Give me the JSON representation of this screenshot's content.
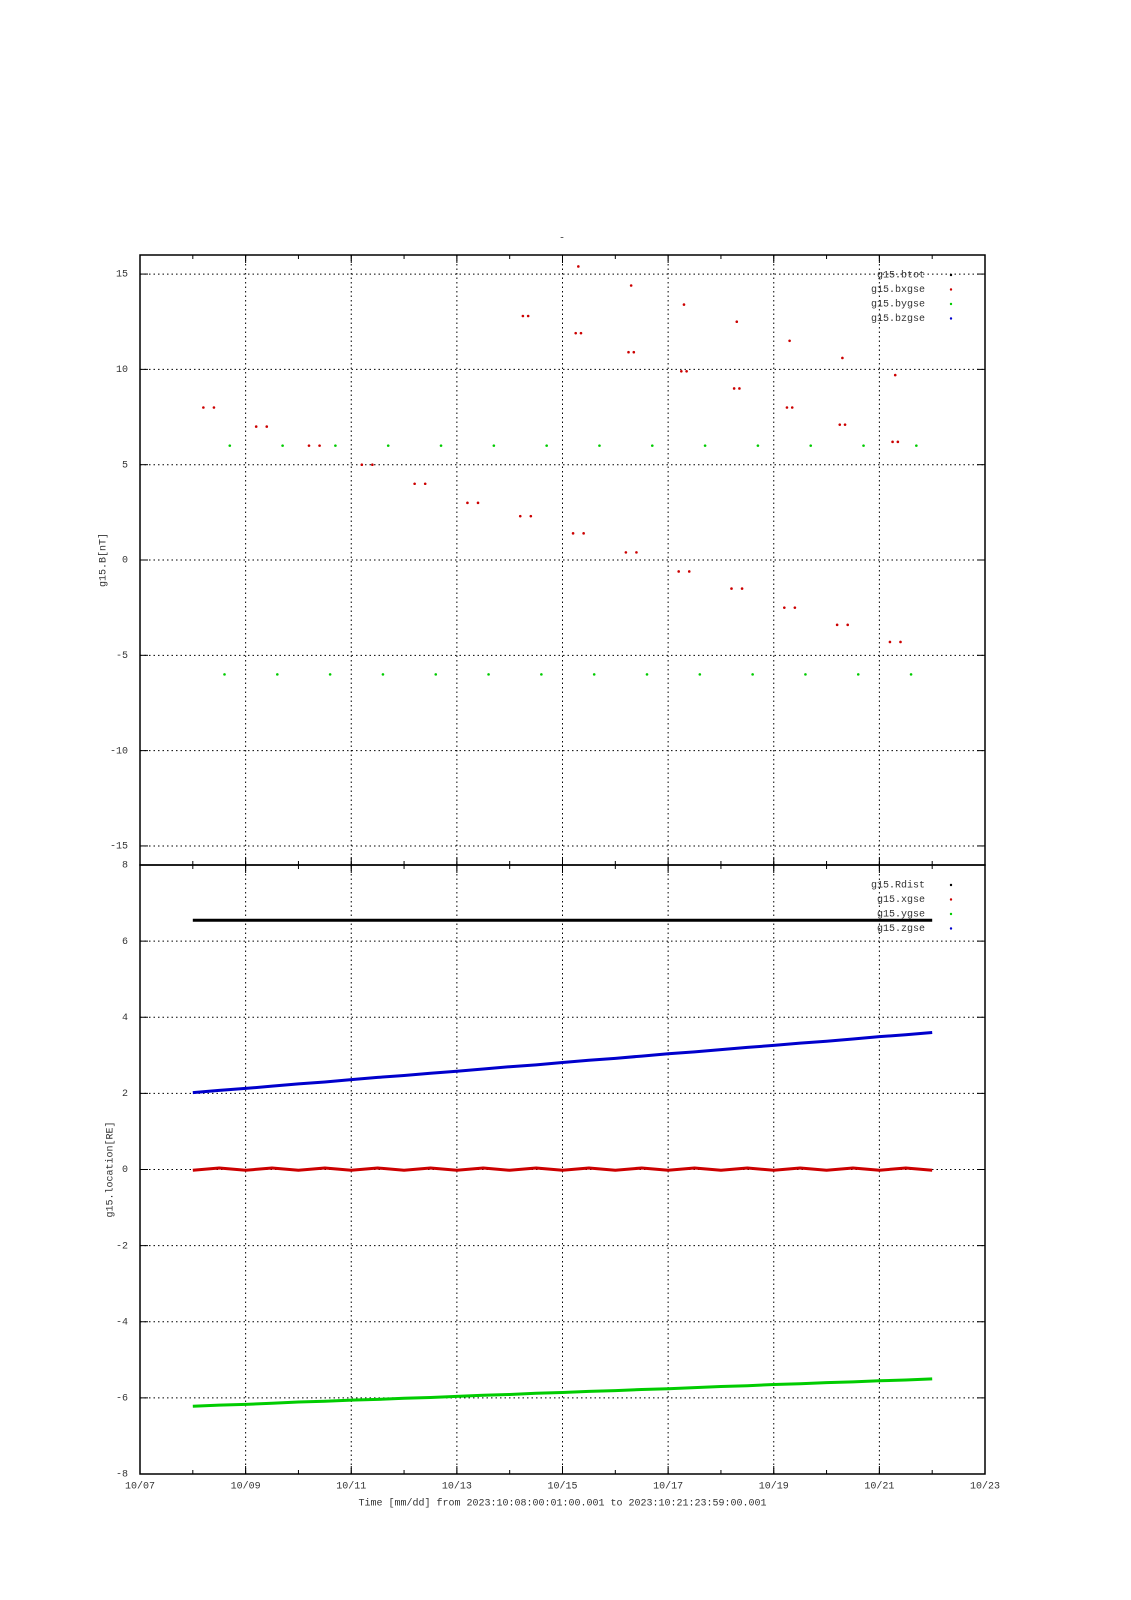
{
  "chart_data": [
    {
      "type": "scatter",
      "title": "-",
      "ylabel": "g15.B[nT]",
      "xlim": [
        7,
        23
      ],
      "ylim": [
        -16,
        16
      ],
      "xticks": [
        {
          "value": 7,
          "label": "10/07"
        },
        {
          "value": 9,
          "label": "10/09"
        },
        {
          "value": 11,
          "label": "10/11"
        },
        {
          "value": 13,
          "label": "10/13"
        },
        {
          "value": 15,
          "label": "10/15"
        },
        {
          "value": 17,
          "label": "10/17"
        },
        {
          "value": 19,
          "label": "10/19"
        },
        {
          "value": 21,
          "label": "10/21"
        },
        {
          "value": 23,
          "label": "10/23"
        }
      ],
      "yticks": [
        -15,
        -10,
        -5,
        0,
        5,
        10,
        15
      ],
      "grid": true,
      "legend": "upper right",
      "series": [
        {
          "name": "g15.btot",
          "color": "#000000",
          "x": [],
          "values": []
        },
        {
          "name": "g15.bxgse",
          "color": "#cc0000",
          "x": [
            8.2,
            8.4,
            9.2,
            9.4,
            10.2,
            10.4,
            11.2,
            11.4,
            12.2,
            12.4,
            13.2,
            13.4,
            14.2,
            14.25,
            14.35,
            14.4,
            15.2,
            15.25,
            15.3,
            15.35,
            15.4,
            16.2,
            16.25,
            16.3,
            16.35,
            16.4,
            17.2,
            17.25,
            17.3,
            17.35,
            17.4,
            18.2,
            18.25,
            18.3,
            18.35,
            18.4,
            19.2,
            19.25,
            19.3,
            19.35,
            19.4,
            20.2,
            20.25,
            20.3,
            20.35,
            20.4,
            21.2,
            21.25,
            21.3,
            21.35,
            21.4
          ],
          "values": [
            8,
            8,
            7,
            7,
            6,
            6,
            5,
            5,
            4,
            4,
            3,
            3,
            2.3,
            12.8,
            12.8,
            2.3,
            1.4,
            11.9,
            15.4,
            11.9,
            1.4,
            0.4,
            10.9,
            14.4,
            10.9,
            0.4,
            -0.6,
            9.9,
            13.4,
            9.9,
            -0.6,
            -1.5,
            9,
            12.5,
            9,
            -1.5,
            -2.5,
            8,
            11.5,
            8,
            -2.5,
            -3.4,
            7.1,
            10.6,
            7.1,
            -3.4,
            -4.3,
            6.2,
            9.7,
            6.2,
            -4.3
          ]
        },
        {
          "name": "g15.bygse",
          "color": "#00cc00",
          "x": [
            8.6,
            8.7,
            9.6,
            9.7,
            10.6,
            10.7,
            11.6,
            11.7,
            12.6,
            12.7,
            13.6,
            13.7,
            14.6,
            14.7,
            15.6,
            15.7,
            16.6,
            16.7,
            17.6,
            17.7,
            18.6,
            18.7,
            19.6,
            19.7,
            20.6,
            20.7,
            21.6,
            21.7
          ],
          "values": [
            -6,
            6,
            -6,
            6,
            -6,
            6,
            -6,
            6,
            -6,
            6,
            -6,
            6,
            -6,
            6,
            -6,
            6,
            -6,
            6,
            -6,
            6,
            -6,
            6,
            -6,
            6,
            -6,
            6,
            -6,
            6
          ]
        },
        {
          "name": "g15.bzgse",
          "color": "#0000cc",
          "x": [],
          "values": []
        }
      ]
    },
    {
      "type": "line",
      "ylabel": "g15.location[RE]",
      "xlabel": "Time [mm/dd]  from 2023:10:08:00:01:00.001  to  2023:10:21:23:59:00.001",
      "xlim": [
        7,
        23
      ],
      "ylim": [
        -8,
        8
      ],
      "xticks": [
        {
          "value": 7,
          "label": "10/07"
        },
        {
          "value": 9,
          "label": "10/09"
        },
        {
          "value": 11,
          "label": "10/11"
        },
        {
          "value": 13,
          "label": "10/13"
        },
        {
          "value": 15,
          "label": "10/15"
        },
        {
          "value": 17,
          "label": "10/17"
        },
        {
          "value": 19,
          "label": "10/19"
        },
        {
          "value": 21,
          "label": "10/21"
        },
        {
          "value": 23,
          "label": "10/23"
        }
      ],
      "yticks": [
        -8,
        -6,
        -4,
        -2,
        0,
        2,
        4,
        6,
        8
      ],
      "grid": true,
      "legend": "upper right",
      "x": [
        8,
        8.5,
        9,
        9.5,
        10,
        10.5,
        11,
        11.5,
        12,
        12.5,
        13,
        13.5,
        14,
        14.5,
        15,
        15.5,
        16,
        16.5,
        17,
        17.5,
        18,
        18.5,
        19,
        19.5,
        20,
        20.5,
        21,
        21.5,
        22
      ],
      "series": [
        {
          "name": "g15.Rdist",
          "color": "#000000",
          "values": [
            6.55,
            6.55,
            6.55,
            6.55,
            6.55,
            6.55,
            6.55,
            6.55,
            6.55,
            6.55,
            6.55,
            6.55,
            6.55,
            6.55,
            6.55,
            6.55,
            6.55,
            6.55,
            6.55,
            6.55,
            6.55,
            6.55,
            6.55,
            6.55,
            6.55,
            6.55,
            6.55,
            6.55,
            6.55
          ]
        },
        {
          "name": "g15.xgse",
          "color": "#cc0000",
          "values": [
            -0.02,
            0.04,
            -0.02,
            0.04,
            -0.02,
            0.04,
            -0.02,
            0.04,
            -0.02,
            0.04,
            -0.02,
            0.04,
            -0.02,
            0.04,
            -0.02,
            0.04,
            -0.02,
            0.04,
            -0.02,
            0.04,
            -0.02,
            0.04,
            -0.02,
            0.04,
            -0.02,
            0.04,
            -0.02,
            0.04,
            -0.02
          ]
        },
        {
          "name": "g15.ygse",
          "color": "#00cc00",
          "values": [
            -6.22,
            -6.19,
            -6.17,
            -6.14,
            -6.11,
            -6.09,
            -6.06,
            -6.04,
            -6.01,
            -5.99,
            -5.96,
            -5.93,
            -5.91,
            -5.88,
            -5.86,
            -5.83,
            -5.81,
            -5.78,
            -5.76,
            -5.73,
            -5.7,
            -5.68,
            -5.65,
            -5.63,
            -5.6,
            -5.58,
            -5.55,
            -5.53,
            -5.5
          ]
        },
        {
          "name": "g15.zgse",
          "color": "#0000cc",
          "values": [
            2.02,
            2.08,
            2.13,
            2.19,
            2.25,
            2.3,
            2.36,
            2.42,
            2.47,
            2.53,
            2.58,
            2.64,
            2.7,
            2.75,
            2.81,
            2.87,
            2.92,
            2.98,
            3.04,
            3.09,
            3.15,
            3.21,
            3.26,
            3.32,
            3.37,
            3.43,
            3.49,
            3.54,
            3.6
          ]
        }
      ]
    }
  ]
}
